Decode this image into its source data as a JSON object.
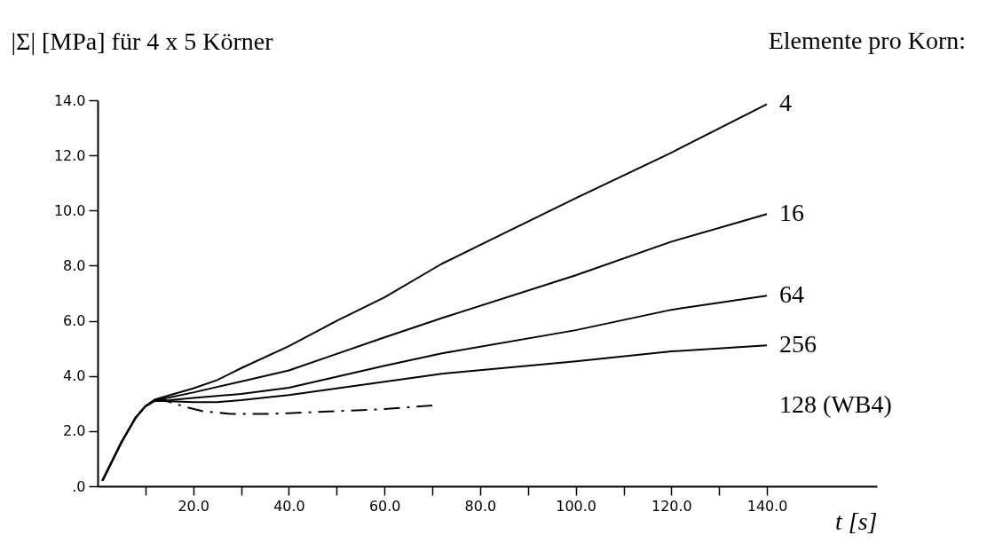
{
  "chart_data": {
    "type": "line",
    "ylabel": "|Σ| [MPa] für 4 x 5 Körner",
    "xlabel": "t [s]",
    "legend_title": "Elemente pro Korn:",
    "xlim": [
      0,
      163
    ],
    "ylim": [
      0,
      14
    ],
    "xticks": [
      {
        "value": 10,
        "label": null
      },
      {
        "value": 20,
        "label": "20.0"
      },
      {
        "value": 30,
        "label": null
      },
      {
        "value": 40,
        "label": "40.0"
      },
      {
        "value": 50,
        "label": null
      },
      {
        "value": 60,
        "label": "60.0"
      },
      {
        "value": 70,
        "label": null
      },
      {
        "value": 80,
        "label": "80.0"
      },
      {
        "value": 90,
        "label": null
      },
      {
        "value": 100,
        "label": "100.0"
      },
      {
        "value": 110,
        "label": null
      },
      {
        "value": 120,
        "label": "120.0"
      },
      {
        "value": 130,
        "label": null
      },
      {
        "value": 140,
        "label": "140.0"
      }
    ],
    "yticks": [
      {
        "value": 0,
        "label": ".0"
      },
      {
        "value": 2,
        "label": "2.0"
      },
      {
        "value": 4,
        "label": "4.0"
      },
      {
        "value": 6,
        "label": "6.0"
      },
      {
        "value": 8,
        "label": "8.0"
      },
      {
        "value": 10,
        "label": "10.0"
      },
      {
        "value": 12,
        "label": "12.0"
      },
      {
        "value": 14,
        "label": "14.0"
      }
    ],
    "grid": false,
    "marker": "none",
    "series": [
      {
        "name": "4",
        "color": "#000000",
        "line_style": "solid",
        "x": [
          1,
          5,
          8,
          10,
          12,
          15,
          20,
          25,
          30,
          40,
          50,
          60,
          72,
          80,
          100,
          120,
          140
        ],
        "values": [
          0.2,
          1.6,
          2.5,
          2.9,
          3.15,
          3.3,
          3.55,
          3.85,
          4.28,
          5.08,
          6.0,
          6.85,
          8.07,
          8.75,
          10.45,
          12.1,
          13.86
        ]
      },
      {
        "name": "16",
        "color": "#000000",
        "line_style": "solid",
        "x": [
          1,
          5,
          8,
          10,
          12,
          15,
          20,
          30,
          40,
          50,
          60,
          72,
          100,
          120,
          140
        ],
        "values": [
          0.2,
          1.6,
          2.5,
          2.9,
          3.12,
          3.22,
          3.4,
          3.8,
          4.2,
          4.8,
          5.4,
          6.1,
          7.65,
          8.87,
          9.87
        ]
      },
      {
        "name": "64",
        "color": "#000000",
        "line_style": "solid",
        "x": [
          1,
          5,
          8,
          10,
          12,
          15,
          20,
          30,
          40,
          60,
          72,
          100,
          120,
          140
        ],
        "values": [
          0.2,
          1.6,
          2.5,
          2.9,
          3.1,
          3.12,
          3.2,
          3.35,
          3.57,
          4.37,
          4.82,
          5.66,
          6.4,
          6.91
        ]
      },
      {
        "name": "256",
        "color": "#000000",
        "line_style": "solid",
        "x": [
          1,
          5,
          8,
          10,
          12,
          15,
          20,
          25,
          30,
          40,
          60,
          72,
          100,
          120,
          140
        ],
        "values": [
          0.2,
          1.6,
          2.5,
          2.9,
          3.1,
          3.08,
          3.05,
          3.05,
          3.12,
          3.31,
          3.79,
          4.08,
          4.53,
          4.89,
          5.11
        ]
      },
      {
        "name": "128 (WB4)",
        "color": "#000000",
        "line_style": "dashed",
        "x": [
          1,
          5,
          8,
          10,
          12,
          14,
          16,
          19,
          22,
          28,
          35,
          40,
          50,
          60,
          70
        ],
        "values": [
          0.2,
          1.6,
          2.5,
          2.9,
          3.12,
          3.12,
          3.0,
          2.85,
          2.72,
          2.62,
          2.62,
          2.65,
          2.72,
          2.8,
          2.93
        ]
      }
    ]
  }
}
